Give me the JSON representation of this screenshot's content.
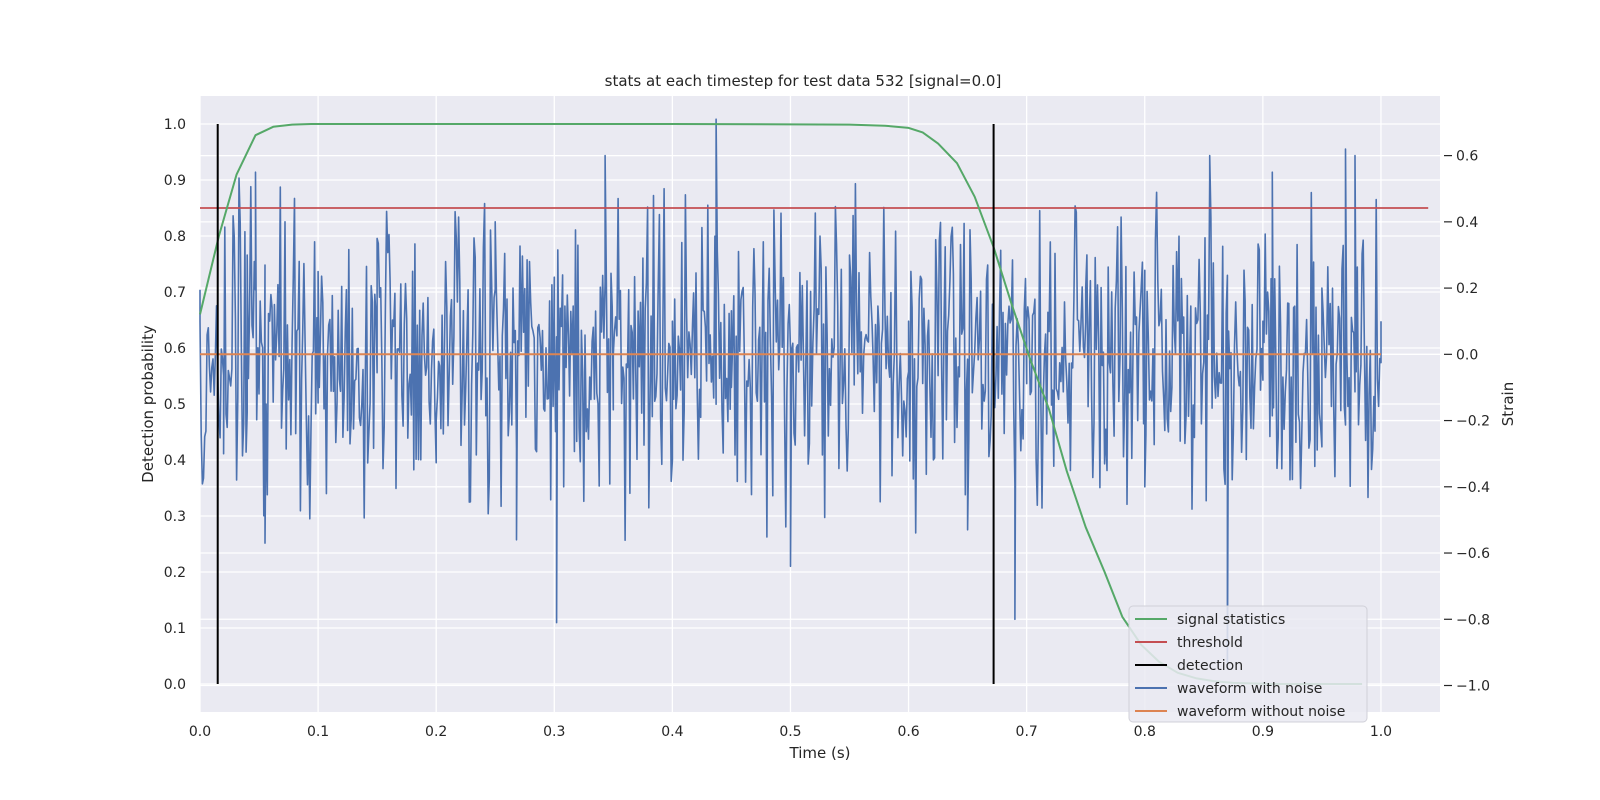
{
  "chart_data": {
    "type": "line",
    "title": "stats at each timestep for test data 532 [signal=0.0]",
    "xlabel": "Time (s)",
    "ylabel": "Detection probability",
    "ylabel_right": "Strain",
    "xlim": [
      0.0,
      1.05
    ],
    "ylim": [
      -0.05,
      1.05
    ],
    "ylim_right": [
      -1.08,
      0.78
    ],
    "xticks": [
      "0.0",
      "0.1",
      "0.2",
      "0.3",
      "0.4",
      "0.5",
      "0.6",
      "0.7",
      "0.8",
      "0.9",
      "1.0"
    ],
    "yticks": [
      "0.0",
      "0.1",
      "0.2",
      "0.3",
      "0.4",
      "0.5",
      "0.6",
      "0.7",
      "0.8",
      "0.9",
      "1.0"
    ],
    "yticks_right": [
      "−1.0",
      "−0.8",
      "−0.6",
      "−0.4",
      "−0.2",
      "0.0",
      "0.2",
      "0.4",
      "0.6"
    ],
    "grid": true,
    "legend_position": "bottom-right",
    "colors": {
      "background": "#eaeaf2",
      "grid": "#ffffff",
      "signal_statistics": "#55a868",
      "threshold": "#c44e52",
      "detection": "#000000",
      "waveform_with_noise": "#4c72b0",
      "waveform_without_noise": "#dd8452"
    },
    "legend": [
      {
        "label": "signal statistics",
        "color": "#55a868"
      },
      {
        "label": "threshold",
        "color": "#c44e52"
      },
      {
        "label": "detection",
        "color": "#000000"
      },
      {
        "label": "waveform with noise",
        "color": "#4c72b0"
      },
      {
        "label": "waveform without noise",
        "color": "#dd8452"
      }
    ],
    "series": [
      {
        "name": "signal statistics",
        "axis": "left",
        "x": [
          0.0,
          0.016,
          0.031,
          0.047,
          0.062,
          0.078,
          0.094,
          0.2,
          0.4,
          0.55,
          0.58,
          0.6,
          0.612,
          0.625,
          0.641,
          0.656,
          0.672,
          0.687,
          0.703,
          0.719,
          0.734,
          0.75,
          0.766,
          0.781,
          0.797,
          0.812,
          0.828,
          0.844,
          0.859,
          0.875,
          0.89,
          0.906,
          0.922,
          0.937,
          0.953,
          0.969,
          0.984
        ],
        "y": [
          0.66,
          0.8,
          0.91,
          0.98,
          0.995,
          0.999,
          1.0,
          1.0,
          1.0,
          0.999,
          0.997,
          0.993,
          0.985,
          0.965,
          0.93,
          0.87,
          0.78,
          0.68,
          0.58,
          0.49,
          0.38,
          0.28,
          0.2,
          0.12,
          0.07,
          0.04,
          0.02,
          0.01,
          0.005,
          0.002,
          0.001,
          0.0,
          0.0,
          0.0,
          0.0,
          0.0,
          0.0
        ]
      },
      {
        "name": "threshold",
        "axis": "left",
        "x": [
          0.0,
          1.04
        ],
        "y": [
          0.85,
          0.85
        ]
      },
      {
        "name": "waveform without noise",
        "axis": "right",
        "x": [
          0.0,
          1.0
        ],
        "y": [
          0.0,
          0.0
        ]
      },
      {
        "name": "waveform with noise",
        "axis": "right",
        "x": [
          0.0,
          0.02,
          0.04,
          0.047,
          0.055,
          0.1,
          0.15,
          0.2,
          0.25,
          0.268,
          0.3,
          0.302,
          0.343,
          0.35,
          0.4,
          0.437,
          0.45,
          0.5,
          0.55,
          0.6,
          0.65,
          0.69,
          0.7,
          0.75,
          0.8,
          0.855,
          0.87,
          0.9,
          0.908,
          0.95,
          0.97,
          0.978,
          1.0
        ],
        "y": [
          0.1,
          -0.3,
          0.3,
          0.55,
          -0.57,
          0.25,
          0.35,
          -0.2,
          0.4,
          -0.56,
          0.1,
          -0.81,
          0.6,
          0.0,
          0.1,
          0.71,
          -0.1,
          -0.64,
          0.3,
          0.1,
          -0.53,
          -0.8,
          0.1,
          0.2,
          -0.4,
          0.6,
          -0.95,
          0.1,
          0.55,
          0.2,
          0.62,
          0.6,
          0.1
        ]
      },
      {
        "name": "detection",
        "axis": "left",
        "x": [
          0.015,
          0.672
        ],
        "y_range": [
          0.0,
          1.0
        ]
      }
    ]
  }
}
